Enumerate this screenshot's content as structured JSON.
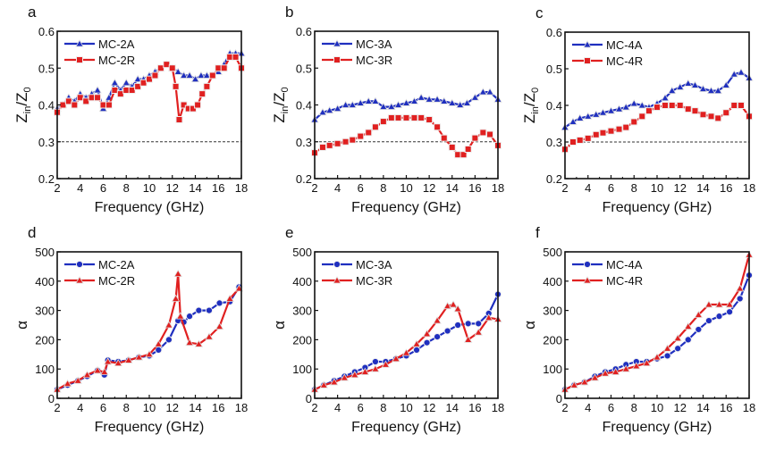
{
  "chart_data": [
    {
      "panel": "a",
      "type": "line",
      "xlabel": "Frequency (GHz)",
      "ylabel_main": "Z",
      "ylabel_sub1": "in",
      "ylabel_mid": "/Z",
      "ylabel_sub2": "0",
      "xlim": [
        2,
        18
      ],
      "ylim": [
        0.2,
        0.6
      ],
      "xticks": [
        2,
        4,
        6,
        8,
        10,
        12,
        14,
        16,
        18
      ],
      "yticks": [
        0.2,
        0.3,
        0.4,
        0.5,
        0.6
      ],
      "ytick_labels": [
        "0.2",
        "0.3",
        "0.4",
        "0.5",
        "0.6"
      ],
      "reference_line": 0.3,
      "legend": "top-left",
      "series": [
        {
          "name": "MC-2A",
          "color": "#1f2fbf",
          "marker": "triangle",
          "x": [
            2,
            2.5,
            3,
            3.5,
            4,
            4.5,
            5,
            5.5,
            6,
            6.5,
            7,
            7.5,
            8,
            8.5,
            9,
            9.5,
            10,
            10.5,
            11,
            11.5,
            12,
            12.5,
            13,
            13.5,
            14,
            14.5,
            15,
            15.5,
            16,
            16.5,
            17,
            17.5,
            18
          ],
          "y": [
            0.39,
            0.4,
            0.42,
            0.41,
            0.43,
            0.42,
            0.43,
            0.44,
            0.39,
            0.42,
            0.46,
            0.44,
            0.46,
            0.45,
            0.47,
            0.47,
            0.48,
            0.49,
            0.5,
            0.51,
            0.5,
            0.49,
            0.48,
            0.48,
            0.47,
            0.48,
            0.48,
            0.48,
            0.49,
            0.51,
            0.54,
            0.54,
            0.54
          ]
        },
        {
          "name": "MC-2R",
          "color": "#e02020",
          "marker": "square",
          "x": [
            2,
            2.5,
            3,
            3.5,
            4,
            4.5,
            5,
            5.5,
            6,
            6.5,
            7,
            7.5,
            8,
            8.5,
            9,
            9.5,
            10,
            10.5,
            11,
            11.5,
            12,
            12.3,
            12.6,
            13,
            13.4,
            13.8,
            14.2,
            14.6,
            15,
            15.5,
            16,
            16.5,
            17,
            17.5,
            18
          ],
          "y": [
            0.38,
            0.4,
            0.41,
            0.4,
            0.42,
            0.41,
            0.42,
            0.42,
            0.4,
            0.4,
            0.44,
            0.43,
            0.44,
            0.44,
            0.45,
            0.46,
            0.47,
            0.48,
            0.5,
            0.51,
            0.5,
            0.45,
            0.36,
            0.4,
            0.39,
            0.39,
            0.4,
            0.43,
            0.45,
            0.48,
            0.5,
            0.5,
            0.53,
            0.53,
            0.5
          ]
        }
      ]
    },
    {
      "panel": "b",
      "type": "line",
      "xlabel": "Frequency (GHz)",
      "ylabel_main": "Z",
      "ylabel_sub1": "in",
      "ylabel_mid": "/Z",
      "ylabel_sub2": "0",
      "xlim": [
        2,
        18
      ],
      "ylim": [
        0.2,
        0.6
      ],
      "xticks": [
        2,
        4,
        6,
        8,
        10,
        12,
        14,
        16,
        18
      ],
      "yticks": [
        0.2,
        0.3,
        0.4,
        0.5,
        0.6
      ],
      "ytick_labels": [
        "0.2",
        "0.3",
        "0.4",
        "0.5",
        "0.6"
      ],
      "reference_line": 0.3,
      "legend": "top-left",
      "series": [
        {
          "name": "MC-3A",
          "color": "#1f2fbf",
          "marker": "triangle",
          "x": [
            2,
            2.7,
            3.3,
            4,
            4.7,
            5.3,
            6,
            6.7,
            7.3,
            8,
            8.7,
            9.3,
            10,
            10.7,
            11.3,
            12,
            12.7,
            13.3,
            14,
            14.7,
            15.3,
            16,
            16.7,
            17.3,
            18
          ],
          "y": [
            0.36,
            0.38,
            0.385,
            0.39,
            0.4,
            0.4,
            0.405,
            0.41,
            0.41,
            0.395,
            0.395,
            0.4,
            0.405,
            0.41,
            0.42,
            0.415,
            0.415,
            0.41,
            0.405,
            0.4,
            0.405,
            0.42,
            0.435,
            0.435,
            0.415
          ]
        },
        {
          "name": "MC-3R",
          "color": "#e02020",
          "marker": "square",
          "x": [
            2,
            2.7,
            3.3,
            4,
            4.7,
            5.3,
            6,
            6.7,
            7.3,
            8,
            8.7,
            9.3,
            10,
            10.7,
            11.3,
            12,
            12.7,
            13.3,
            14,
            14.5,
            15,
            15.4,
            16,
            16.7,
            17.3,
            18
          ],
          "y": [
            0.27,
            0.285,
            0.29,
            0.295,
            0.3,
            0.305,
            0.315,
            0.325,
            0.34,
            0.355,
            0.365,
            0.365,
            0.365,
            0.365,
            0.365,
            0.36,
            0.34,
            0.31,
            0.285,
            0.265,
            0.265,
            0.28,
            0.31,
            0.325,
            0.32,
            0.29
          ]
        }
      ]
    },
    {
      "panel": "c",
      "type": "line",
      "xlabel": "Frequency (GHz)",
      "ylabel_main": "Z",
      "ylabel_sub1": "in",
      "ylabel_mid": "/Z",
      "ylabel_sub2": "0",
      "xlim": [
        2,
        18
      ],
      "ylim": [
        0.2,
        0.6
      ],
      "xticks": [
        2,
        4,
        6,
        8,
        10,
        12,
        14,
        16,
        18
      ],
      "yticks": [
        0.2,
        0.3,
        0.4,
        0.5,
        0.6
      ],
      "ytick_labels": [
        "0.2",
        "0.3",
        "0.4",
        "0.5",
        "0.6"
      ],
      "reference_line": 0.3,
      "legend": "top-left",
      "series": [
        {
          "name": "MC-4A",
          "color": "#1f2fbf",
          "marker": "triangle",
          "x": [
            2,
            2.7,
            3.3,
            4,
            4.7,
            5.3,
            6,
            6.7,
            7.3,
            8,
            8.7,
            9.3,
            10,
            10.7,
            11.3,
            12,
            12.7,
            13.3,
            14,
            14.7,
            15.3,
            16,
            16.7,
            17.3,
            18
          ],
          "y": [
            0.34,
            0.355,
            0.365,
            0.37,
            0.375,
            0.38,
            0.385,
            0.39,
            0.395,
            0.405,
            0.4,
            0.395,
            0.405,
            0.42,
            0.44,
            0.45,
            0.46,
            0.455,
            0.445,
            0.44,
            0.44,
            0.455,
            0.485,
            0.49,
            0.475
          ]
        },
        {
          "name": "MC-4R",
          "color": "#e02020",
          "marker": "square",
          "x": [
            2,
            2.7,
            3.3,
            4,
            4.7,
            5.3,
            6,
            6.7,
            7.3,
            8,
            8.7,
            9.3,
            10,
            10.7,
            11.3,
            12,
            12.7,
            13.3,
            14,
            14.7,
            15.3,
            16,
            16.7,
            17.3,
            18
          ],
          "y": [
            0.28,
            0.3,
            0.305,
            0.31,
            0.32,
            0.325,
            0.33,
            0.335,
            0.34,
            0.355,
            0.37,
            0.385,
            0.395,
            0.4,
            0.4,
            0.4,
            0.39,
            0.385,
            0.375,
            0.37,
            0.365,
            0.38,
            0.4,
            0.4,
            0.37
          ]
        }
      ]
    },
    {
      "panel": "d",
      "type": "line",
      "xlabel": "Frequency (GHz)",
      "ylabel_main": "α",
      "xlim": [
        2,
        18
      ],
      "ylim": [
        0,
        500
      ],
      "xticks": [
        2,
        4,
        6,
        8,
        10,
        12,
        14,
        16,
        18
      ],
      "yticks": [
        0,
        100,
        200,
        300,
        400,
        500
      ],
      "ytick_labels": [
        "0",
        "100",
        "200",
        "300",
        "400",
        "500"
      ],
      "legend": "top-left",
      "series": [
        {
          "name": "MC-2A",
          "color": "#1f2fbf",
          "marker": "circle",
          "x": [
            2,
            2.9,
            3.8,
            4.6,
            5.5,
            6.1,
            6.4,
            7.3,
            8.2,
            9.1,
            10,
            10.8,
            11.7,
            12.5,
            13,
            13.5,
            14.3,
            15.2,
            16.1,
            17,
            17.8
          ],
          "y": [
            30,
            45,
            60,
            75,
            95,
            80,
            130,
            125,
            130,
            140,
            145,
            165,
            200,
            265,
            260,
            280,
            300,
            300,
            325,
            330,
            380
          ]
        },
        {
          "name": "MC-2R",
          "color": "#e02020",
          "marker": "triangle",
          "x": [
            2,
            2.9,
            3.8,
            4.6,
            5.5,
            6.1,
            6.4,
            7.3,
            8.2,
            9.1,
            10,
            10.8,
            11.7,
            12.3,
            12.5,
            12.7,
            13.5,
            14.3,
            15.2,
            16.1,
            17,
            17.8
          ],
          "y": [
            30,
            50,
            60,
            80,
            95,
            90,
            125,
            120,
            130,
            140,
            150,
            185,
            250,
            340,
            425,
            280,
            190,
            185,
            210,
            245,
            340,
            375
          ]
        }
      ]
    },
    {
      "panel": "e",
      "type": "line",
      "xlabel": "Frequency (GHz)",
      "ylabel_main": "α",
      "xlim": [
        2,
        18
      ],
      "ylim": [
        0,
        500
      ],
      "xticks": [
        2,
        4,
        6,
        8,
        10,
        12,
        14,
        16,
        18
      ],
      "yticks": [
        0,
        100,
        200,
        300,
        400,
        500
      ],
      "ytick_labels": [
        "0",
        "100",
        "200",
        "300",
        "400",
        "500"
      ],
      "legend": "top-left",
      "series": [
        {
          "name": "MC-3A",
          "color": "#1f2fbf",
          "marker": "circle",
          "x": [
            2,
            2.8,
            3.7,
            4.6,
            5.5,
            6.4,
            7.3,
            8.2,
            9.1,
            10,
            10.9,
            11.8,
            12.7,
            13.6,
            14.5,
            15.4,
            16.3,
            17.2,
            18
          ],
          "y": [
            30,
            45,
            60,
            75,
            90,
            105,
            125,
            125,
            135,
            145,
            165,
            190,
            210,
            230,
            250,
            255,
            255,
            290,
            355
          ]
        },
        {
          "name": "MC-3R",
          "color": "#e02020",
          "marker": "triangle",
          "x": [
            2,
            2.8,
            3.7,
            4.6,
            5.5,
            6.4,
            7.3,
            8.2,
            9.1,
            10,
            10.9,
            11.8,
            12.7,
            13.6,
            14.1,
            14.5,
            15.4,
            16.3,
            17.2,
            18
          ],
          "y": [
            30,
            45,
            55,
            70,
            80,
            90,
            100,
            115,
            135,
            155,
            185,
            220,
            265,
            315,
            320,
            305,
            200,
            225,
            275,
            270
          ]
        }
      ]
    },
    {
      "panel": "f",
      "type": "line",
      "xlabel": "Frequency (GHz)",
      "ylabel_main": "α",
      "xlim": [
        2,
        18
      ],
      "ylim": [
        0,
        500
      ],
      "xticks": [
        2,
        4,
        6,
        8,
        10,
        12,
        14,
        16,
        18
      ],
      "yticks": [
        0,
        100,
        200,
        300,
        400,
        500
      ],
      "ytick_labels": [
        "0",
        "100",
        "200",
        "300",
        "400",
        "500"
      ],
      "legend": "top-left",
      "series": [
        {
          "name": "MC-4A",
          "color": "#1f2fbf",
          "marker": "circle",
          "x": [
            2,
            2.8,
            3.7,
            4.6,
            5.5,
            6.4,
            7.3,
            8.2,
            9.1,
            10,
            10.9,
            11.8,
            12.7,
            13.6,
            14.5,
            15.4,
            16.3,
            17.2,
            18
          ],
          "y": [
            30,
            45,
            55,
            75,
            90,
            100,
            115,
            125,
            125,
            135,
            145,
            170,
            200,
            235,
            265,
            280,
            295,
            340,
            420
          ]
        },
        {
          "name": "MC-4R",
          "color": "#e02020",
          "marker": "triangle",
          "x": [
            2,
            2.8,
            3.7,
            4.6,
            5.5,
            6.4,
            7.3,
            8.2,
            9.1,
            10,
            10.9,
            11.8,
            12.7,
            13.6,
            14.5,
            15.4,
            16.3,
            17.2,
            18
          ],
          "y": [
            30,
            45,
            55,
            70,
            85,
            90,
            100,
            110,
            120,
            140,
            170,
            205,
            245,
            285,
            320,
            320,
            320,
            375,
            490
          ]
        }
      ]
    }
  ]
}
